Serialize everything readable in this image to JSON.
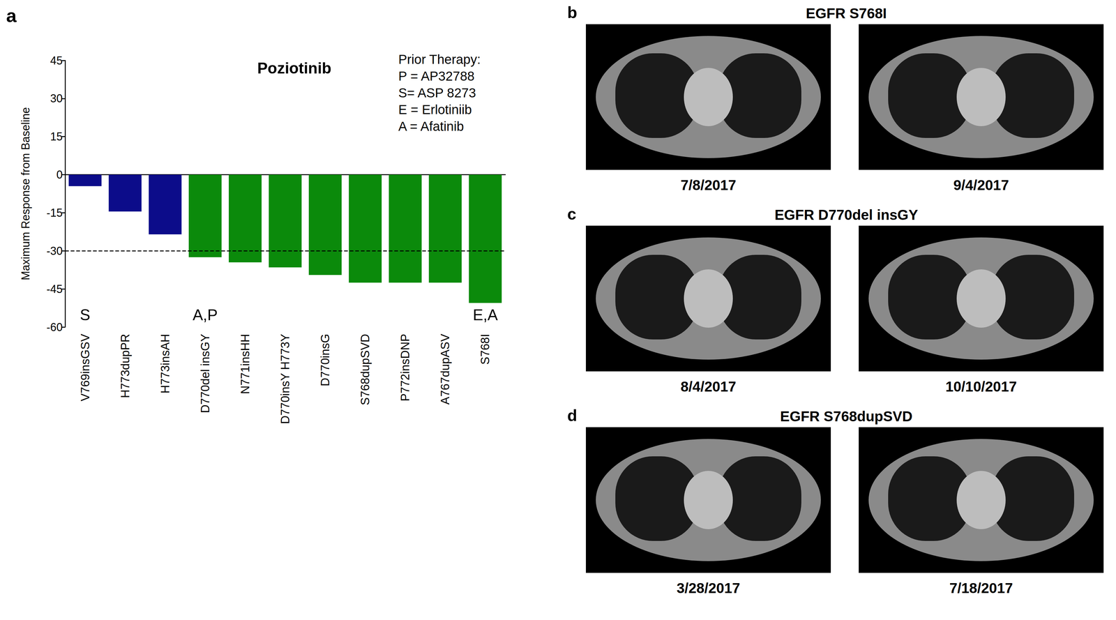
{
  "chart_data": {
    "type": "bar",
    "panel": "a",
    "title": "Poziotinib",
    "y_label": "Maximum Response from Baseline",
    "categories": [
      "V769insGSV",
      "H773dupPR",
      "H773insAH",
      "D770del insGY",
      "N771insHH",
      "D770insY H773Y",
      "D770insG",
      "S768dupSVD",
      "P772insDNP",
      "A767dupASV",
      "S768I"
    ],
    "values": [
      -4.5,
      -14.5,
      -23.5,
      -32.5,
      -34.5,
      -36.5,
      -39.5,
      -42.5,
      -42.5,
      -42.5,
      -50.5
    ],
    "colors": [
      "#0c0c8a",
      "#0c0c8a",
      "#0c0c8a",
      "#0b8a0b",
      "#0b8a0b",
      "#0b8a0b",
      "#0b8a0b",
      "#0b8a0b",
      "#0b8a0b",
      "#0b8a0b",
      "#0b8a0b"
    ],
    "annotations": [
      "S",
      null,
      null,
      "A,P",
      null,
      null,
      null,
      null,
      null,
      null,
      "E,A"
    ],
    "reference_line": -30,
    "ylim": [
      -60,
      45
    ],
    "yticks": [
      -60,
      -45,
      -30,
      -15,
      0,
      15,
      30,
      45
    ],
    "grid": false,
    "legend_box": [
      "Prior Therapy:",
      "P = AP32788",
      "S= ASP 8273",
      "E = Erlotiniib",
      "A = Afatinib"
    ]
  },
  "scans": [
    {
      "letter": "b",
      "title": "EGFR S768I",
      "dates": [
        "7/8/2017",
        "9/4/2017"
      ]
    },
    {
      "letter": "c",
      "title": "EGFR D770del insGY",
      "dates": [
        "8/4/2017",
        "10/10/2017"
      ]
    },
    {
      "letter": "d",
      "title": "EGFR S768dupSVD",
      "dates": [
        "3/28/2017",
        "7/18/2017"
      ]
    }
  ]
}
